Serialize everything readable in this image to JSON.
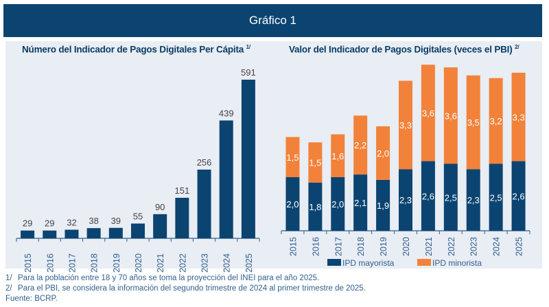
{
  "header": {
    "title": "Gráfico 1"
  },
  "colors": {
    "header_bg": "#0b4471",
    "panel_bg": "#e9edf4",
    "blue": "#0b4471",
    "orange": "#f2823a",
    "axis": "#2f5f8f"
  },
  "chart_data": [
    {
      "type": "bar",
      "title": "Número del Indicador de  Pagos Digitales Per Cápita",
      "title_footnote": "1/",
      "categories": [
        "2015",
        "2016",
        "2017",
        "2018",
        "2019",
        "2020",
        "2021",
        "2022",
        "2023",
        "2024",
        "2025"
      ],
      "values": [
        29,
        29,
        32,
        38,
        39,
        55,
        90,
        151,
        256,
        439,
        591
      ],
      "value_labels": [
        "29",
        "29",
        "32",
        "38",
        "39",
        "55",
        "90",
        "151",
        "256",
        "439",
        "591"
      ],
      "xlabel": "",
      "ylabel": "",
      "ylim": [
        0,
        600
      ],
      "grid": false,
      "legend": null
    },
    {
      "type": "bar",
      "stacked": true,
      "title": "Valor del Indicador de Pagos Digitales (veces el PBI)",
      "title_footnote": "2/",
      "categories": [
        "2015",
        "2016",
        "2017",
        "2018",
        "2019",
        "2020",
        "2021",
        "2022",
        "2023",
        "2024",
        "2025"
      ],
      "series": [
        {
          "name": "IPD mayorista",
          "color": "#0b4471",
          "values": [
            2.0,
            1.8,
            2.0,
            2.1,
            1.9,
            2.3,
            2.6,
            2.5,
            2.3,
            2.5,
            2.6
          ],
          "labels": [
            "2,0",
            "1,8",
            "2,0",
            "2,1",
            "1,9",
            "2,3",
            "2,6",
            "2,5",
            "2,3",
            "2,5",
            "2,6"
          ]
        },
        {
          "name": "IPD minorista",
          "color": "#f2823a",
          "values": [
            1.5,
            1.5,
            1.6,
            2.2,
            2.0,
            3.3,
            3.6,
            3.6,
            3.5,
            3.2,
            3.3
          ],
          "labels": [
            "1,5",
            "1,5",
            "1,6",
            "2,2",
            "2,0",
            "3,3",
            "3,6",
            "3,6",
            "3,5",
            "3,2",
            "3,3"
          ]
        }
      ],
      "xlabel": "",
      "ylabel": "",
      "ylim": [
        0,
        6.5
      ],
      "grid": false,
      "legend": "bottom"
    }
  ],
  "notes": [
    {
      "num": "1/",
      "text": "Para la población entre 18 y 70 años se toma la proyección del INEI para el año 2025."
    },
    {
      "num": "2/",
      "text": "Para el PBI, se considera la información del segundo trimestre de 2024 al primer trimestre de 2025."
    }
  ],
  "source": "Fuente: BCRP."
}
